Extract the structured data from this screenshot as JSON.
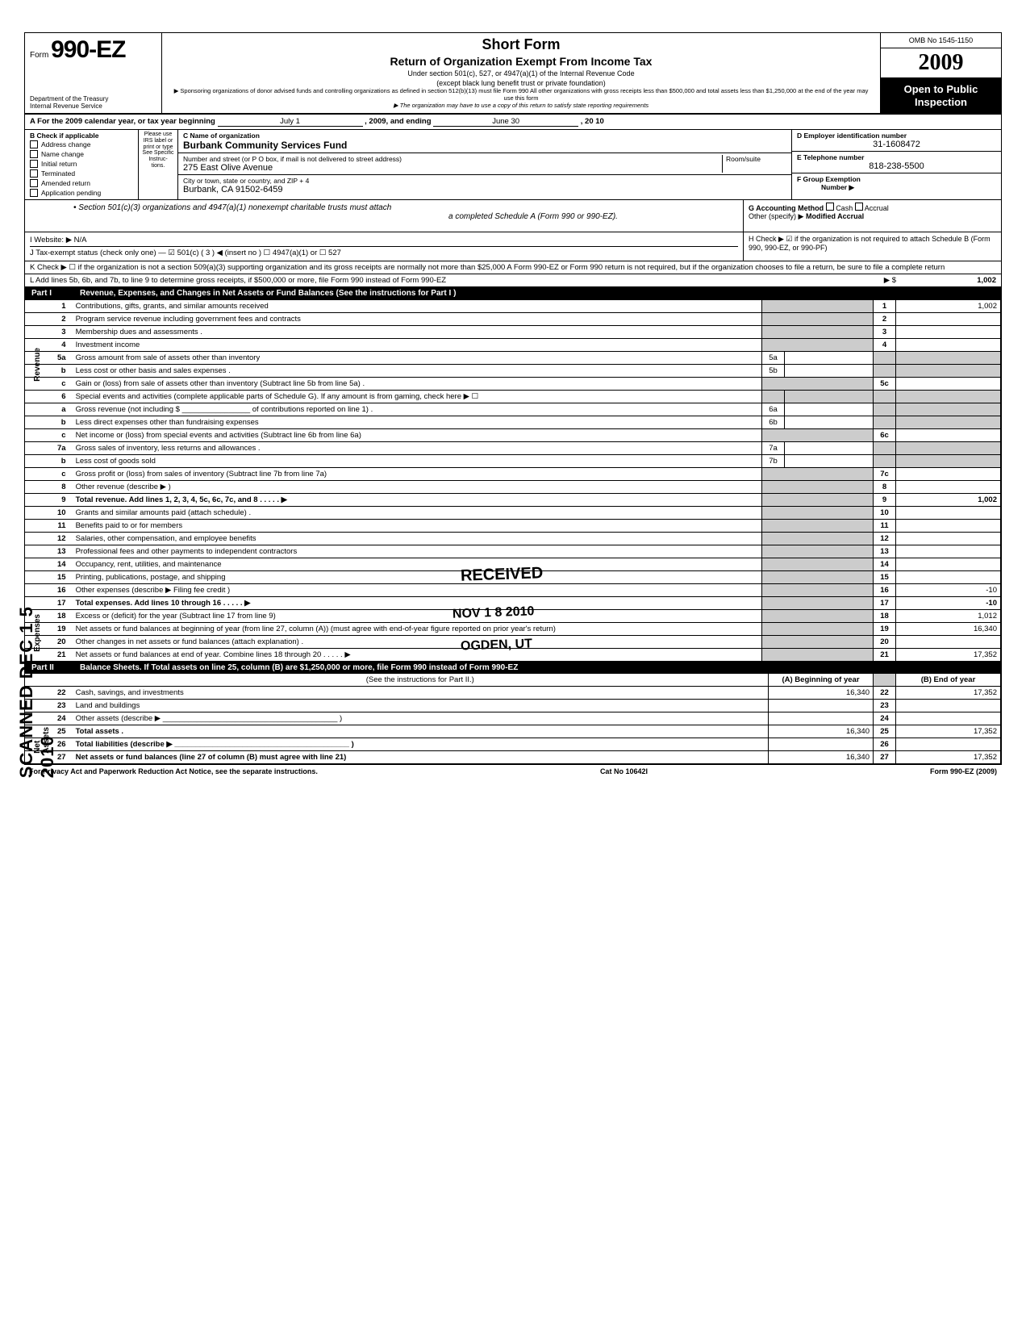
{
  "header": {
    "form_prefix": "Form",
    "form_no": "990-EZ",
    "dept1": "Department of the Treasury",
    "dept2": "Internal Revenue Service",
    "title1": "Short Form",
    "title2": "Return of Organization Exempt From Income Tax",
    "title3": "Under section 501(c), 527, or 4947(a)(1) of the Internal Revenue Code",
    "title4": "(except black lung benefit trust or private foundation)",
    "note1": "▶ Sponsoring organizations of donor advised funds and controlling organizations as defined in section 512(b)(13) must file Form 990  All other organizations with gross receipts less than $500,000 and total assets less than $1,250,000 at the end of the year may use this form",
    "note2": "▶ The organization may have to use a copy of this return to satisfy state reporting requirements",
    "omb": "OMB No 1545-1150",
    "year": "2009",
    "open": "Open to Public Inspection"
  },
  "lineA": {
    "text": "A  For the 2009 calendar year, or tax year beginning",
    "begin": "July 1",
    "mid": ", 2009, and ending",
    "end": "June 30",
    "yr": ", 20   10"
  },
  "sectionB": {
    "label": "B  Check if applicable",
    "items": [
      "Address change",
      "Name change",
      "Initial return",
      "Terminated",
      "Amended return",
      "Application pending"
    ],
    "irs": "Please use IRS label or print or type\nSee Specific Instruc-tions.",
    "c_label": "C Name of organization",
    "c_val": "Burbank Community Services Fund",
    "street_label": "Number and street (or P O  box, if mail is not delivered to street address)",
    "street_val": "275 East Olive Avenue",
    "room_label": "Room/suite",
    "city_label": "City or town, state or country, and ZIP + 4",
    "city_val": "Burbank, CA 91502-6459",
    "d_label": "D Employer identification number",
    "d_val": "31-1608472",
    "e_label": "E Telephone number",
    "e_val": "818-238-5500",
    "f_label": "F Group Exemption",
    "f_label2": "Number ▶"
  },
  "midblock": {
    "text1": "• Section 501(c)(3) organizations and 4947(a)(1) nonexempt charitable trusts must attach",
    "text2": "a completed Schedule A (Form 990 or 990-EZ).",
    "g_label": "G  Accounting Method",
    "g_cash": "Cash",
    "g_accrual": "Accrual",
    "g_other": "Other (specify) ▶",
    "g_other_val": "Modified Accrual",
    "h_text": "H  Check ▶ ☑ if the organization is not required to attach Schedule B (Form 990, 990-EZ, or 990-PF)"
  },
  "lines": {
    "i": "I   Website: ▶     N/A",
    "j": "J  Tax-exempt status (check only one) —  ☑ 501(c) (    3   ) ◀ (insert no )   ☐ 4947(a)(1) or    ☐ 527",
    "k": "K  Check ▶  ☐   if the organization is not a section 509(a)(3) supporting organization and its gross receipts are normally not more than $25,000   A Form 990-EZ or Form 990 return is not required,  but if the organization chooses to file a return, be sure to file a complete return",
    "l": "L  Add lines 5b, 6b, and 7b, to line 9 to determine gross receipts, if $500,000 or more, file Form 990 instead of Form 990-EZ",
    "l_arrow": "▶     $",
    "l_val": "1,002"
  },
  "part1": {
    "num": "Part I",
    "title": "Revenue, Expenses, and Changes in Net Assets or Fund Balances (See the instructions for Part I )",
    "rows": [
      {
        "n": "1",
        "d": "Contributions, gifts, grants, and similar amounts received",
        "en": "1",
        "ev": "1,002"
      },
      {
        "n": "2",
        "d": "Program service revenue including government fees and contracts",
        "en": "2",
        "ev": ""
      },
      {
        "n": "3",
        "d": "Membership dues and assessments .",
        "en": "3",
        "ev": ""
      },
      {
        "n": "4",
        "d": "Investment income",
        "en": "4",
        "ev": ""
      },
      {
        "n": "5a",
        "d": "Gross amount from sale of assets other than inventory",
        "mn": "5a",
        "mv": "",
        "shade": true
      },
      {
        "n": "b",
        "d": "Less  cost or other basis and sales expenses .",
        "mn": "5b",
        "mv": "",
        "shade": true
      },
      {
        "n": "c",
        "d": "Gain or (loss) from sale of assets other than inventory (Subtract line 5b from line 5a)  .",
        "en": "5c",
        "ev": ""
      },
      {
        "n": "6",
        "d": "Special events and activities (complete applicable parts of Schedule G). If any amount is from gaming, check here ▶ ☐",
        "shade": true,
        "full": true
      },
      {
        "n": "a",
        "d": "Gross revenue (not including $ ________________ of contributions reported on line 1) .",
        "mn": "6a",
        "mv": "",
        "shade": true
      },
      {
        "n": "b",
        "d": "Less  direct expenses other than fundraising expenses",
        "mn": "6b",
        "mv": "",
        "shade": true
      },
      {
        "n": "c",
        "d": "Net income or (loss) from special events and activities (Subtract line 6b from line 6a)",
        "en": "6c",
        "ev": ""
      },
      {
        "n": "7a",
        "d": "Gross sales of inventory, less returns and allowances  .",
        "mn": "7a",
        "mv": "",
        "shade": true
      },
      {
        "n": "b",
        "d": "Less  cost of goods sold",
        "mn": "7b",
        "mv": "",
        "shade": true
      },
      {
        "n": "c",
        "d": "Gross profit or (loss) from sales of inventory (Subtract line 7b from line 7a)",
        "en": "7c",
        "ev": ""
      },
      {
        "n": "8",
        "d": "Other revenue (describe ▶                                                                                            )",
        "en": "8",
        "ev": ""
      },
      {
        "n": "9",
        "d": "Total revenue. Add lines 1, 2, 3, 4, 5c, 6c, 7c, and 8",
        "en": "9",
        "ev": "1,002",
        "bold": true,
        "arrow": true
      },
      {
        "n": "10",
        "d": "Grants and similar amounts paid (attach schedule) .",
        "en": "10",
        "ev": ""
      },
      {
        "n": "11",
        "d": "Benefits paid to or for members",
        "en": "11",
        "ev": ""
      },
      {
        "n": "12",
        "d": "Salaries, other compensation, and employee benefits",
        "en": "12",
        "ev": ""
      },
      {
        "n": "13",
        "d": "Professional fees and other payments to independent contractors",
        "en": "13",
        "ev": ""
      },
      {
        "n": "14",
        "d": "Occupancy, rent, utilities, and maintenance",
        "en": "14",
        "ev": ""
      },
      {
        "n": "15",
        "d": "Printing, publications, postage, and shipping",
        "en": "15",
        "ev": ""
      },
      {
        "n": "16",
        "d": "Other expenses (describe ▶      Filing fee credit                                                                          )",
        "en": "16",
        "ev": "-10"
      },
      {
        "n": "17",
        "d": "Total expenses. Add lines 10 through 16",
        "en": "17",
        "ev": "-10",
        "bold": true,
        "arrow": true
      },
      {
        "n": "18",
        "d": "Excess or (deficit) for the year (Subtract line 17 from line 9)",
        "en": "18",
        "ev": "1,012"
      },
      {
        "n": "19",
        "d": "Net assets or fund balances at beginning of year (from line 27, column (A)) (must agree with end-of-year figure reported on prior year's return)",
        "en": "19",
        "ev": "16,340"
      },
      {
        "n": "20",
        "d": "Other changes in net assets or fund balances (attach explanation) .",
        "en": "20",
        "ev": ""
      },
      {
        "n": "21",
        "d": "Net assets or fund balances at end of year. Combine lines 18 through 20",
        "en": "21",
        "ev": "17,352",
        "arrow": true
      }
    ],
    "vlabels": {
      "rev": "Revenue",
      "exp": "Expenses",
      "na": "Net Assets"
    }
  },
  "part2": {
    "num": "Part II",
    "title": "Balance Sheets. If Total assets on line 25, column (B) are $1,250,000 or more, file Form 990 instead of Form 990-EZ",
    "subtitle": "(See the instructions for Part II.)",
    "colA": "(A) Beginning of year",
    "colB": "(B) End of year",
    "rows": [
      {
        "n": "22",
        "d": "Cash, savings, and investments",
        "a": "16,340",
        "m": "22",
        "b": "17,352"
      },
      {
        "n": "23",
        "d": "Land and buildings",
        "a": "",
        "m": "23",
        "b": ""
      },
      {
        "n": "24",
        "d": "Other assets (describe ▶  _________________________________________ )",
        "a": "",
        "m": "24",
        "b": ""
      },
      {
        "n": "25",
        "d": "Total assets .",
        "a": "16,340",
        "m": "25",
        "b": "17,352",
        "bold": true
      },
      {
        "n": "26",
        "d": "Total liabilities (describe ▶  _________________________________________ )",
        "a": "",
        "m": "26",
        "b": "",
        "bold": true
      },
      {
        "n": "27",
        "d": "Net assets or fund balances (line 27 of column (B) must agree with line 21)",
        "a": "16,340",
        "m": "27",
        "b": "17,352",
        "bold": true
      }
    ]
  },
  "footer": {
    "left": "For Privacy Act and Paperwork Reduction Act Notice, see the separate instructions.",
    "mid": "Cat No  10642I",
    "right": "Form 990-EZ (2009)"
  },
  "stamps": {
    "scanned": "SCANNED DEC 1 5 2010",
    "received": "RECEIVED",
    "date": "NOV 1 8 2010",
    "ogden": "OGDEN, UT"
  }
}
